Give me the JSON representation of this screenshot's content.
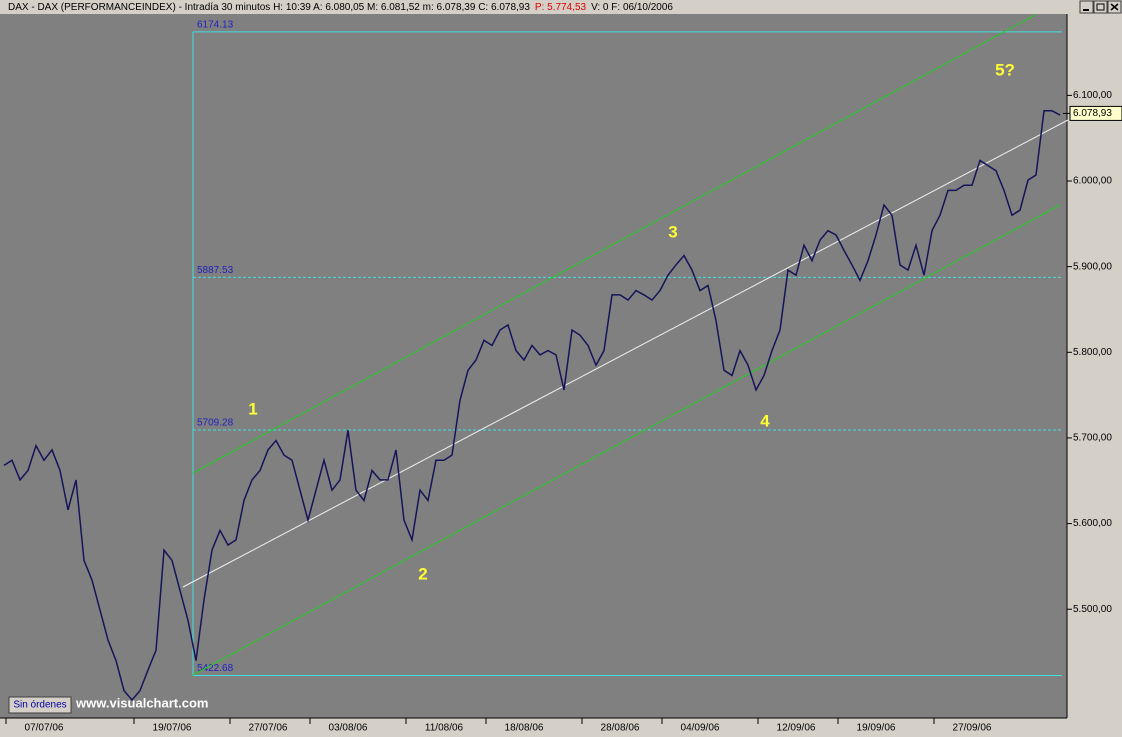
{
  "chart_data": {
    "type": "line",
    "header": [
      "DAX - DAX (PERFORMANCEINDEX) - Intradía 30 minutos  H: 10:39  A: 6.080,05  M: 6.081,52  m: 6.078,39  C: 6.078,93",
      "P: 5.774,53",
      "V: 0  F: 06/10/2006"
    ],
    "categories": [
      null,
      null,
      null,
      null,
      null,
      "07/07/06",
      null,
      null,
      null,
      null,
      null,
      null,
      null,
      null,
      null,
      null,
      null,
      null,
      null,
      null,
      null,
      "19/07/06",
      null,
      null,
      null,
      null,
      null,
      null,
      null,
      null,
      null,
      null,
      null,
      "27/07/06",
      null,
      null,
      null,
      null,
      null,
      null,
      null,
      null,
      null,
      "03/08/06",
      null,
      null,
      null,
      null,
      null,
      null,
      null,
      null,
      null,
      null,
      null,
      "11/08/06",
      null,
      null,
      null,
      null,
      null,
      null,
      null,
      null,
      null,
      "18/08/06",
      null,
      null,
      null,
      null,
      null,
      null,
      null,
      null,
      null,
      null,
      null,
      "28/08/06",
      null,
      null,
      null,
      null,
      null,
      null,
      null,
      null,
      null,
      "04/09/06",
      null,
      null,
      null,
      null,
      null,
      null,
      null,
      null,
      null,
      null,
      null,
      "12/09/06",
      null,
      null,
      null,
      null,
      null,
      null,
      null,
      null,
      null,
      "19/09/06",
      null,
      null,
      null,
      null,
      null,
      null,
      null,
      null,
      null,
      null,
      null,
      "27/09/06",
      null,
      null,
      null,
      null,
      null,
      null,
      null,
      null,
      null,
      null,
      null
    ],
    "series": [
      {
        "color": "#14145a",
        "values": [
          5668,
          5674,
          5651,
          5662,
          5691,
          5674,
          5686,
          5662,
          5616,
          5651,
          5557,
          5534,
          5499,
          5464,
          5440,
          5405,
          5394,
          5405,
          5429,
          5452,
          5569,
          5557,
          5522,
          5487,
          5440,
          5511,
          5569,
          5592,
          5575,
          5581,
          5627,
          5651,
          5662,
          5686,
          5697,
          5680,
          5674,
          5639,
          5604,
          5639,
          5674,
          5639,
          5651,
          5709,
          5639,
          5627,
          5662,
          5651,
          5651,
          5686,
          5604,
          5581,
          5639,
          5627,
          5674,
          5674,
          5680,
          5744,
          5779,
          5791,
          5814,
          5808,
          5826,
          5832,
          5802,
          5791,
          5808,
          5797,
          5802,
          5797,
          5756,
          5826,
          5820,
          5808,
          5785,
          5802,
          5867,
          5867,
          5861,
          5872,
          5867,
          5861,
          5872,
          5890,
          5902,
          5913,
          5896,
          5872,
          5878,
          5837,
          5779,
          5773,
          5802,
          5785,
          5756,
          5773,
          5802,
          5826,
          5896,
          5890,
          5925,
          5907,
          5931,
          5942,
          5937,
          5919,
          5902,
          5884,
          5907,
          5937,
          5972,
          5960,
          5902,
          5896,
          5925,
          5890,
          5942,
          5960,
          5989,
          5989,
          5995,
          5995,
          6024,
          6018,
          6012,
          5989,
          5960,
          5966,
          6001,
          6007,
          6082,
          6082,
          6077
        ]
      }
    ],
    "ylim": [
      5373,
      6195
    ],
    "yticks": [
      {
        "value": 5500,
        "label": "5.500,00"
      },
      {
        "value": 5600,
        "label": "5.600,00"
      },
      {
        "value": 5700,
        "label": "5.700,00"
      },
      {
        "value": 5800,
        "label": "5.800,00"
      },
      {
        "value": 5900,
        "label": "5.900,00"
      },
      {
        "value": 6000,
        "label": "6.000,00"
      },
      {
        "value": 6100,
        "label": "6.100,00"
      }
    ],
    "levels": [
      6174.13,
      5887.53,
      5709.28,
      5422.68
    ],
    "level_color": "#40e0e0",
    "last_price": {
      "value": 6078.93,
      "label": "6.078,93"
    },
    "annotations": [
      "1",
      "2",
      "3",
      "4",
      "5?"
    ],
    "annotation_color": "#ffff33",
    "button": "Sin órdenes",
    "watermark": "www.visualchart.com"
  }
}
